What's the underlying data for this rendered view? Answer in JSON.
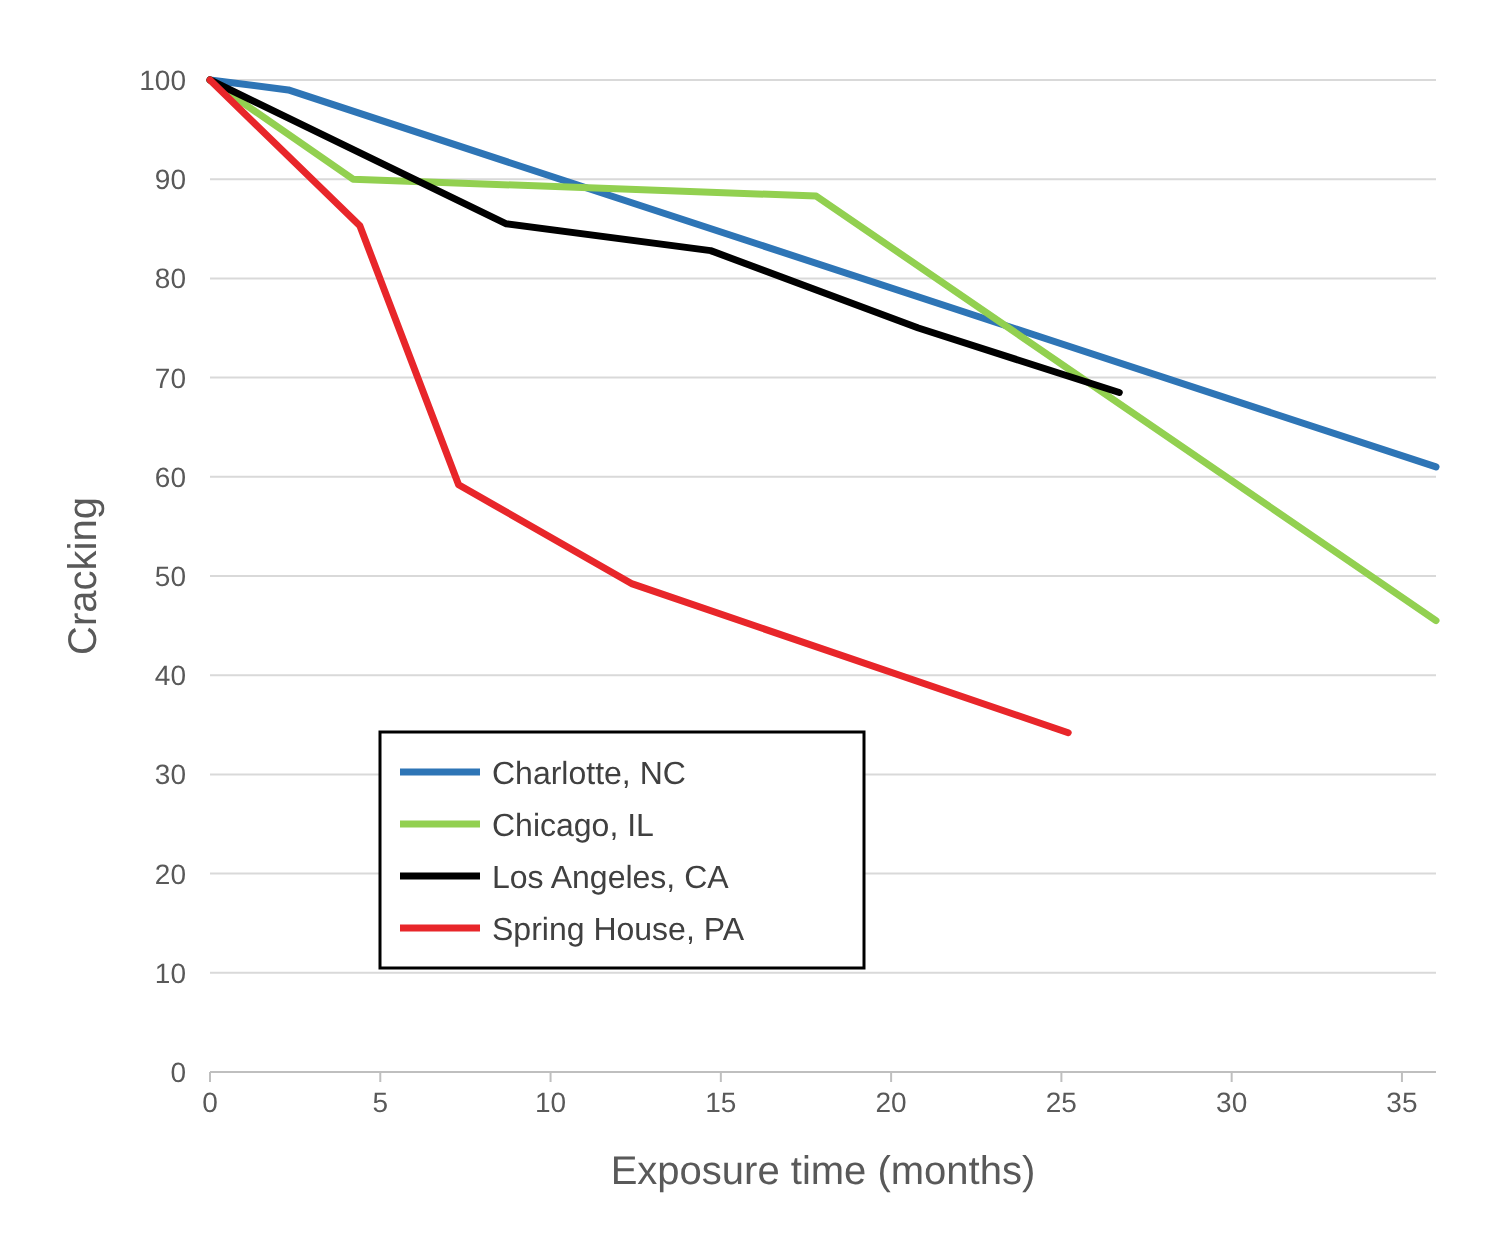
{
  "chart_data": {
    "type": "line",
    "xlabel": "Exposure time (months)",
    "ylabel": "Cracking",
    "xlim": [
      0,
      36
    ],
    "ylim": [
      0,
      100
    ],
    "xticks": [
      0,
      5,
      10,
      15,
      20,
      25,
      30,
      35
    ],
    "yticks": [
      0,
      10,
      20,
      30,
      40,
      50,
      60,
      70,
      80,
      90,
      100
    ],
    "grid": "y",
    "legend": "bottom left",
    "marker": "none",
    "line_style": "solid",
    "series": [
      {
        "name": "Charlotte, NC",
        "color": "#2e75b6",
        "x": [
          0,
          2.3,
          36
        ],
        "values": [
          100,
          99,
          61
        ]
      },
      {
        "name": "Chicago, IL",
        "color": "#92d050",
        "x": [
          0,
          4.2,
          17.8,
          36
        ],
        "values": [
          100,
          90,
          88.3,
          45.5
        ]
      },
      {
        "name": "Los Angeles, CA",
        "color": "#000000",
        "x": [
          0,
          8.7,
          14.7,
          20.8,
          26.7
        ],
        "values": [
          100,
          85.5,
          82.8,
          75,
          68.5
        ]
      },
      {
        "name": "Spring House, PA",
        "color": "#e8262a",
        "x": [
          0,
          4.4,
          7.3,
          12.4,
          25.2
        ],
        "values": [
          100,
          85.3,
          59.2,
          49.2,
          34.2
        ]
      }
    ]
  }
}
